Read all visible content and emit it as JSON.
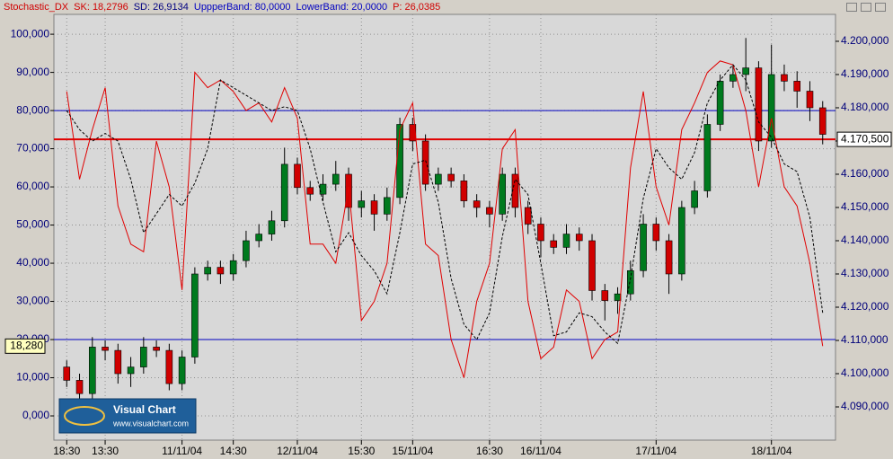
{
  "chart_data": {
    "type": "candlestick",
    "title": "Stochastic_DX",
    "legend": [
      {
        "name": "SK: 18,2796",
        "color": "#d00000"
      },
      {
        "name": "SD: 26,9134",
        "color": "#000080"
      },
      {
        "name": "UppperBand: 80,0000",
        "color": "#0000c0"
      },
      {
        "name": "LowerBand: 20,0000",
        "color": "#0000c0"
      },
      {
        "name": "P: 26,0385",
        "color": "#d00000"
      }
    ],
    "categories": [
      "18:30",
      null,
      null,
      "13:30",
      null,
      null,
      null,
      null,
      null,
      "11/11/04",
      null,
      null,
      null,
      "14:30",
      null,
      null,
      null,
      null,
      "12/11/04",
      null,
      null,
      null,
      null,
      "15:30",
      null,
      null,
      null,
      "15/11/04",
      null,
      null,
      null,
      null,
      null,
      "16:30",
      null,
      null,
      null,
      "16/11/04",
      null,
      null,
      null,
      null,
      null,
      null,
      null,
      null,
      "17/11/04",
      null,
      null,
      null,
      null,
      null,
      null,
      null,
      null,
      "18/11/04",
      null,
      null,
      null,
      null
    ],
    "xlim": [
      -1,
      60
    ],
    "ylim": [
      -6.35,
      105.2
    ],
    "yticks": [
      {
        "value": 0,
        "label": "0,000"
      },
      {
        "value": 10,
        "label": "10,000"
      },
      {
        "value": 20,
        "label": "20,000"
      },
      {
        "value": 30,
        "label": "30,000"
      },
      {
        "value": 40,
        "label": "40,000"
      },
      {
        "value": 50,
        "label": "50,000"
      },
      {
        "value": 60,
        "label": "60,000"
      },
      {
        "value": 70,
        "label": "70,000"
      },
      {
        "value": 80,
        "label": "80,000"
      },
      {
        "value": 90,
        "label": "90,000"
      },
      {
        "value": 100,
        "label": "100,000"
      }
    ],
    "y2lim": [
      4.08,
      4.2081
    ],
    "y2ticks": [
      {
        "value": 4.09,
        "label": "4.090,000"
      },
      {
        "value": 4.1,
        "label": "4.100,000"
      },
      {
        "value": 4.11,
        "label": "4.110,000"
      },
      {
        "value": 4.12,
        "label": "4.120,000"
      },
      {
        "value": 4.13,
        "label": "4.130,000"
      },
      {
        "value": 4.14,
        "label": "4.140,000"
      },
      {
        "value": 4.15,
        "label": "4.150,000"
      },
      {
        "value": 4.16,
        "label": "4.160,000"
      },
      {
        "value": 4.17,
        "label": "4.170,000"
      },
      {
        "value": 4.18,
        "label": "4.180,000"
      },
      {
        "value": 4.19,
        "label": "4.190,000"
      },
      {
        "value": 4.2,
        "label": "4.200,000"
      }
    ],
    "grid": true,
    "candles": {
      "axis": "y2",
      "up_color": "#007a1e",
      "down_color": "#d00000",
      "open": [
        4.102,
        4.098,
        4.094,
        4.108,
        4.107,
        4.1,
        4.102,
        4.108,
        4.107,
        4.097,
        4.105,
        4.13,
        4.132,
        4.13,
        4.134,
        4.14,
        4.142,
        4.146,
        4.163,
        4.156,
        4.154,
        4.157,
        4.16,
        4.15,
        4.152,
        4.148,
        4.153,
        4.175,
        4.17,
        4.157,
        4.16,
        4.158,
        4.152,
        4.15,
        4.148,
        4.16,
        4.15,
        4.145,
        4.14,
        4.138,
        4.142,
        4.14,
        4.125,
        4.122,
        4.124,
        4.131,
        4.145,
        4.14,
        4.13,
        4.15,
        4.155,
        4.175,
        4.188,
        4.19,
        4.192,
        4.17,
        4.19,
        4.188,
        4.185,
        4.18
      ],
      "high": [
        4.104,
        4.1,
        4.111,
        4.11,
        4.109,
        4.105,
        4.111,
        4.11,
        4.109,
        4.107,
        4.132,
        4.134,
        4.134,
        4.136,
        4.143,
        4.145,
        4.149,
        4.168,
        4.165,
        4.158,
        4.16,
        4.164,
        4.162,
        4.155,
        4.154,
        4.156,
        4.177,
        4.177,
        4.172,
        4.162,
        4.162,
        4.16,
        4.154,
        4.152,
        4.162,
        4.162,
        4.152,
        4.147,
        4.142,
        4.145,
        4.144,
        4.142,
        4.127,
        4.126,
        4.134,
        4.148,
        4.147,
        4.142,
        4.152,
        4.158,
        4.178,
        4.19,
        4.193,
        4.201,
        4.194,
        4.199,
        4.193,
        4.191,
        4.188,
        4.182
      ],
      "low": [
        4.096,
        4.09,
        4.092,
        4.104,
        4.097,
        4.096,
        4.1,
        4.105,
        4.095,
        4.095,
        4.103,
        4.128,
        4.127,
        4.128,
        4.132,
        4.138,
        4.14,
        4.144,
        4.154,
        4.152,
        4.152,
        4.155,
        4.146,
        4.147,
        4.143,
        4.146,
        4.151,
        4.167,
        4.155,
        4.155,
        4.156,
        4.15,
        4.147,
        4.144,
        4.146,
        4.147,
        4.142,
        4.135,
        4.136,
        4.136,
        4.137,
        4.122,
        4.116,
        4.118,
        4.122,
        4.129,
        4.137,
        4.124,
        4.128,
        4.148,
        4.153,
        4.173,
        4.186,
        4.185,
        4.167,
        4.168,
        4.185,
        4.18,
        4.176,
        4.169
      ],
      "close": [
        4.098,
        4.094,
        4.108,
        4.107,
        4.1,
        4.102,
        4.108,
        4.107,
        4.097,
        4.105,
        4.13,
        4.132,
        4.13,
        4.134,
        4.14,
        4.142,
        4.146,
        4.163,
        4.156,
        4.154,
        4.157,
        4.16,
        4.15,
        4.152,
        4.148,
        4.153,
        4.175,
        4.17,
        4.157,
        4.16,
        4.158,
        4.152,
        4.15,
        4.148,
        4.16,
        4.15,
        4.145,
        4.14,
        4.138,
        4.142,
        4.14,
        4.125,
        4.122,
        4.124,
        4.131,
        4.145,
        4.14,
        4.13,
        4.15,
        4.155,
        4.175,
        4.188,
        4.19,
        4.192,
        4.17,
        4.19,
        4.188,
        4.185,
        4.18,
        4.172
      ]
    },
    "series": [
      {
        "name": "SK",
        "color": "#e00000",
        "dashed": false,
        "values": [
          85,
          62,
          75,
          86,
          55,
          45,
          43,
          72,
          60,
          33,
          90,
          86,
          88,
          85,
          80,
          82,
          77,
          86,
          78,
          45,
          45,
          40,
          60,
          25,
          30,
          40,
          75,
          82,
          45,
          42,
          20,
          10,
          30,
          40,
          70,
          75,
          30,
          15,
          18,
          33,
          30,
          15,
          20,
          22,
          65,
          85,
          60,
          50,
          75,
          82,
          90,
          93,
          92,
          80,
          60,
          78,
          60,
          55,
          40,
          18.28
        ]
      },
      {
        "name": "SD",
        "color": "#000000",
        "dashed": true,
        "values": [
          80,
          75,
          72,
          74,
          72,
          62,
          48,
          53,
          58,
          55,
          61,
          70,
          88,
          86,
          84,
          82,
          80,
          81,
          80,
          70,
          56,
          43,
          48,
          42,
          38,
          32,
          48,
          66,
          67,
          56,
          36,
          24,
          20,
          27,
          47,
          62,
          58,
          40,
          21,
          22,
          27,
          26,
          22,
          19,
          36,
          57,
          70,
          65,
          62,
          69,
          82,
          88,
          92,
          88,
          77,
          73,
          66,
          64,
          52,
          27
        ]
      }
    ],
    "bands": [
      {
        "value": 80,
        "color": "#0000c0"
      },
      {
        "value": 20,
        "color": "#0000c0"
      }
    ],
    "price_marker": {
      "value": 4.1705,
      "label": "4.170,500",
      "color": "#e00000"
    },
    "sk_marker": {
      "value": 18.28,
      "label": "18,280"
    },
    "watermark": {
      "title": "Visual Chart",
      "url": "www.visualchart.com"
    }
  }
}
